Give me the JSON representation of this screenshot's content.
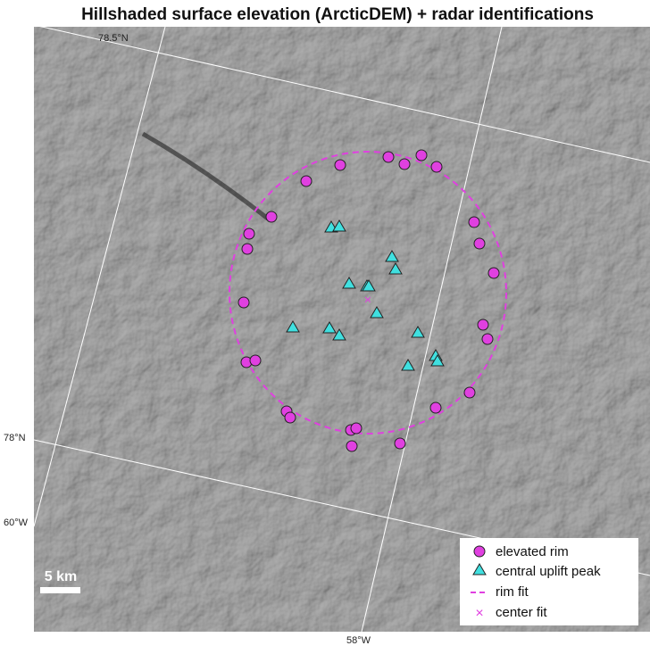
{
  "title": "Hillshaded surface elevation (ArcticDEM) + radar identifications",
  "graticule": {
    "lat_top": "78.5°N",
    "lat_bottom": "78°N",
    "lon_left": "60°W",
    "lon_bottom": "58°W"
  },
  "scale_bar": "5 km",
  "legend": {
    "items": [
      "elevated rim",
      "central uplift peak",
      "rim fit",
      "center fit"
    ]
  }
}
